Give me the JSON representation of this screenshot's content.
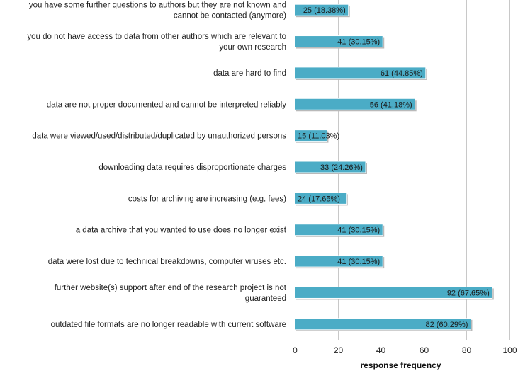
{
  "chart_data": {
    "type": "bar",
    "orientation": "horizontal",
    "title": "",
    "xlabel": "response frequency",
    "ylabel": "",
    "xlim": [
      0,
      100
    ],
    "xticks": [
      0,
      20,
      40,
      60,
      80,
      100
    ],
    "grid": true,
    "legend": "none",
    "bar_color": "#4bacc6",
    "categories": [
      [
        "you have some further questions to authors but they are not known and",
        "cannot be contacted (anymore)"
      ],
      [
        "you do not have access to data from other authors which are relevant to",
        "your own research"
      ],
      [
        "data are hard to find"
      ],
      [
        "data are not proper documented and cannot be interpreted reliably"
      ],
      [
        "data were viewed/used/distributed/duplicated by unauthorized persons"
      ],
      [
        "downloading data requires disproportionate charges"
      ],
      [
        "costs for archiving are increasing (e.g. fees)"
      ],
      [
        "a data archive that you wanted to use does no longer exist"
      ],
      [
        "data were lost due to technical breakdowns, computer viruses etc."
      ],
      [
        "further website(s) support after end of the research project is not",
        "guaranteed"
      ],
      [
        "outdated file formats are no longer readable with current software"
      ]
    ],
    "values": [
      25,
      41,
      61,
      56,
      15,
      33,
      24,
      41,
      41,
      92,
      82
    ],
    "data_labels": [
      "25 (18.38%)",
      "41 (30.15%)",
      "61 (44.85%)",
      "56 (41.18%)",
      "15 (11.03%)",
      "33 (24.26%)",
      "24 (17.65%)",
      "41 (30.15%)",
      "41 (30.15%)",
      "92 (67.65%)",
      "82 (60.29%)"
    ]
  }
}
